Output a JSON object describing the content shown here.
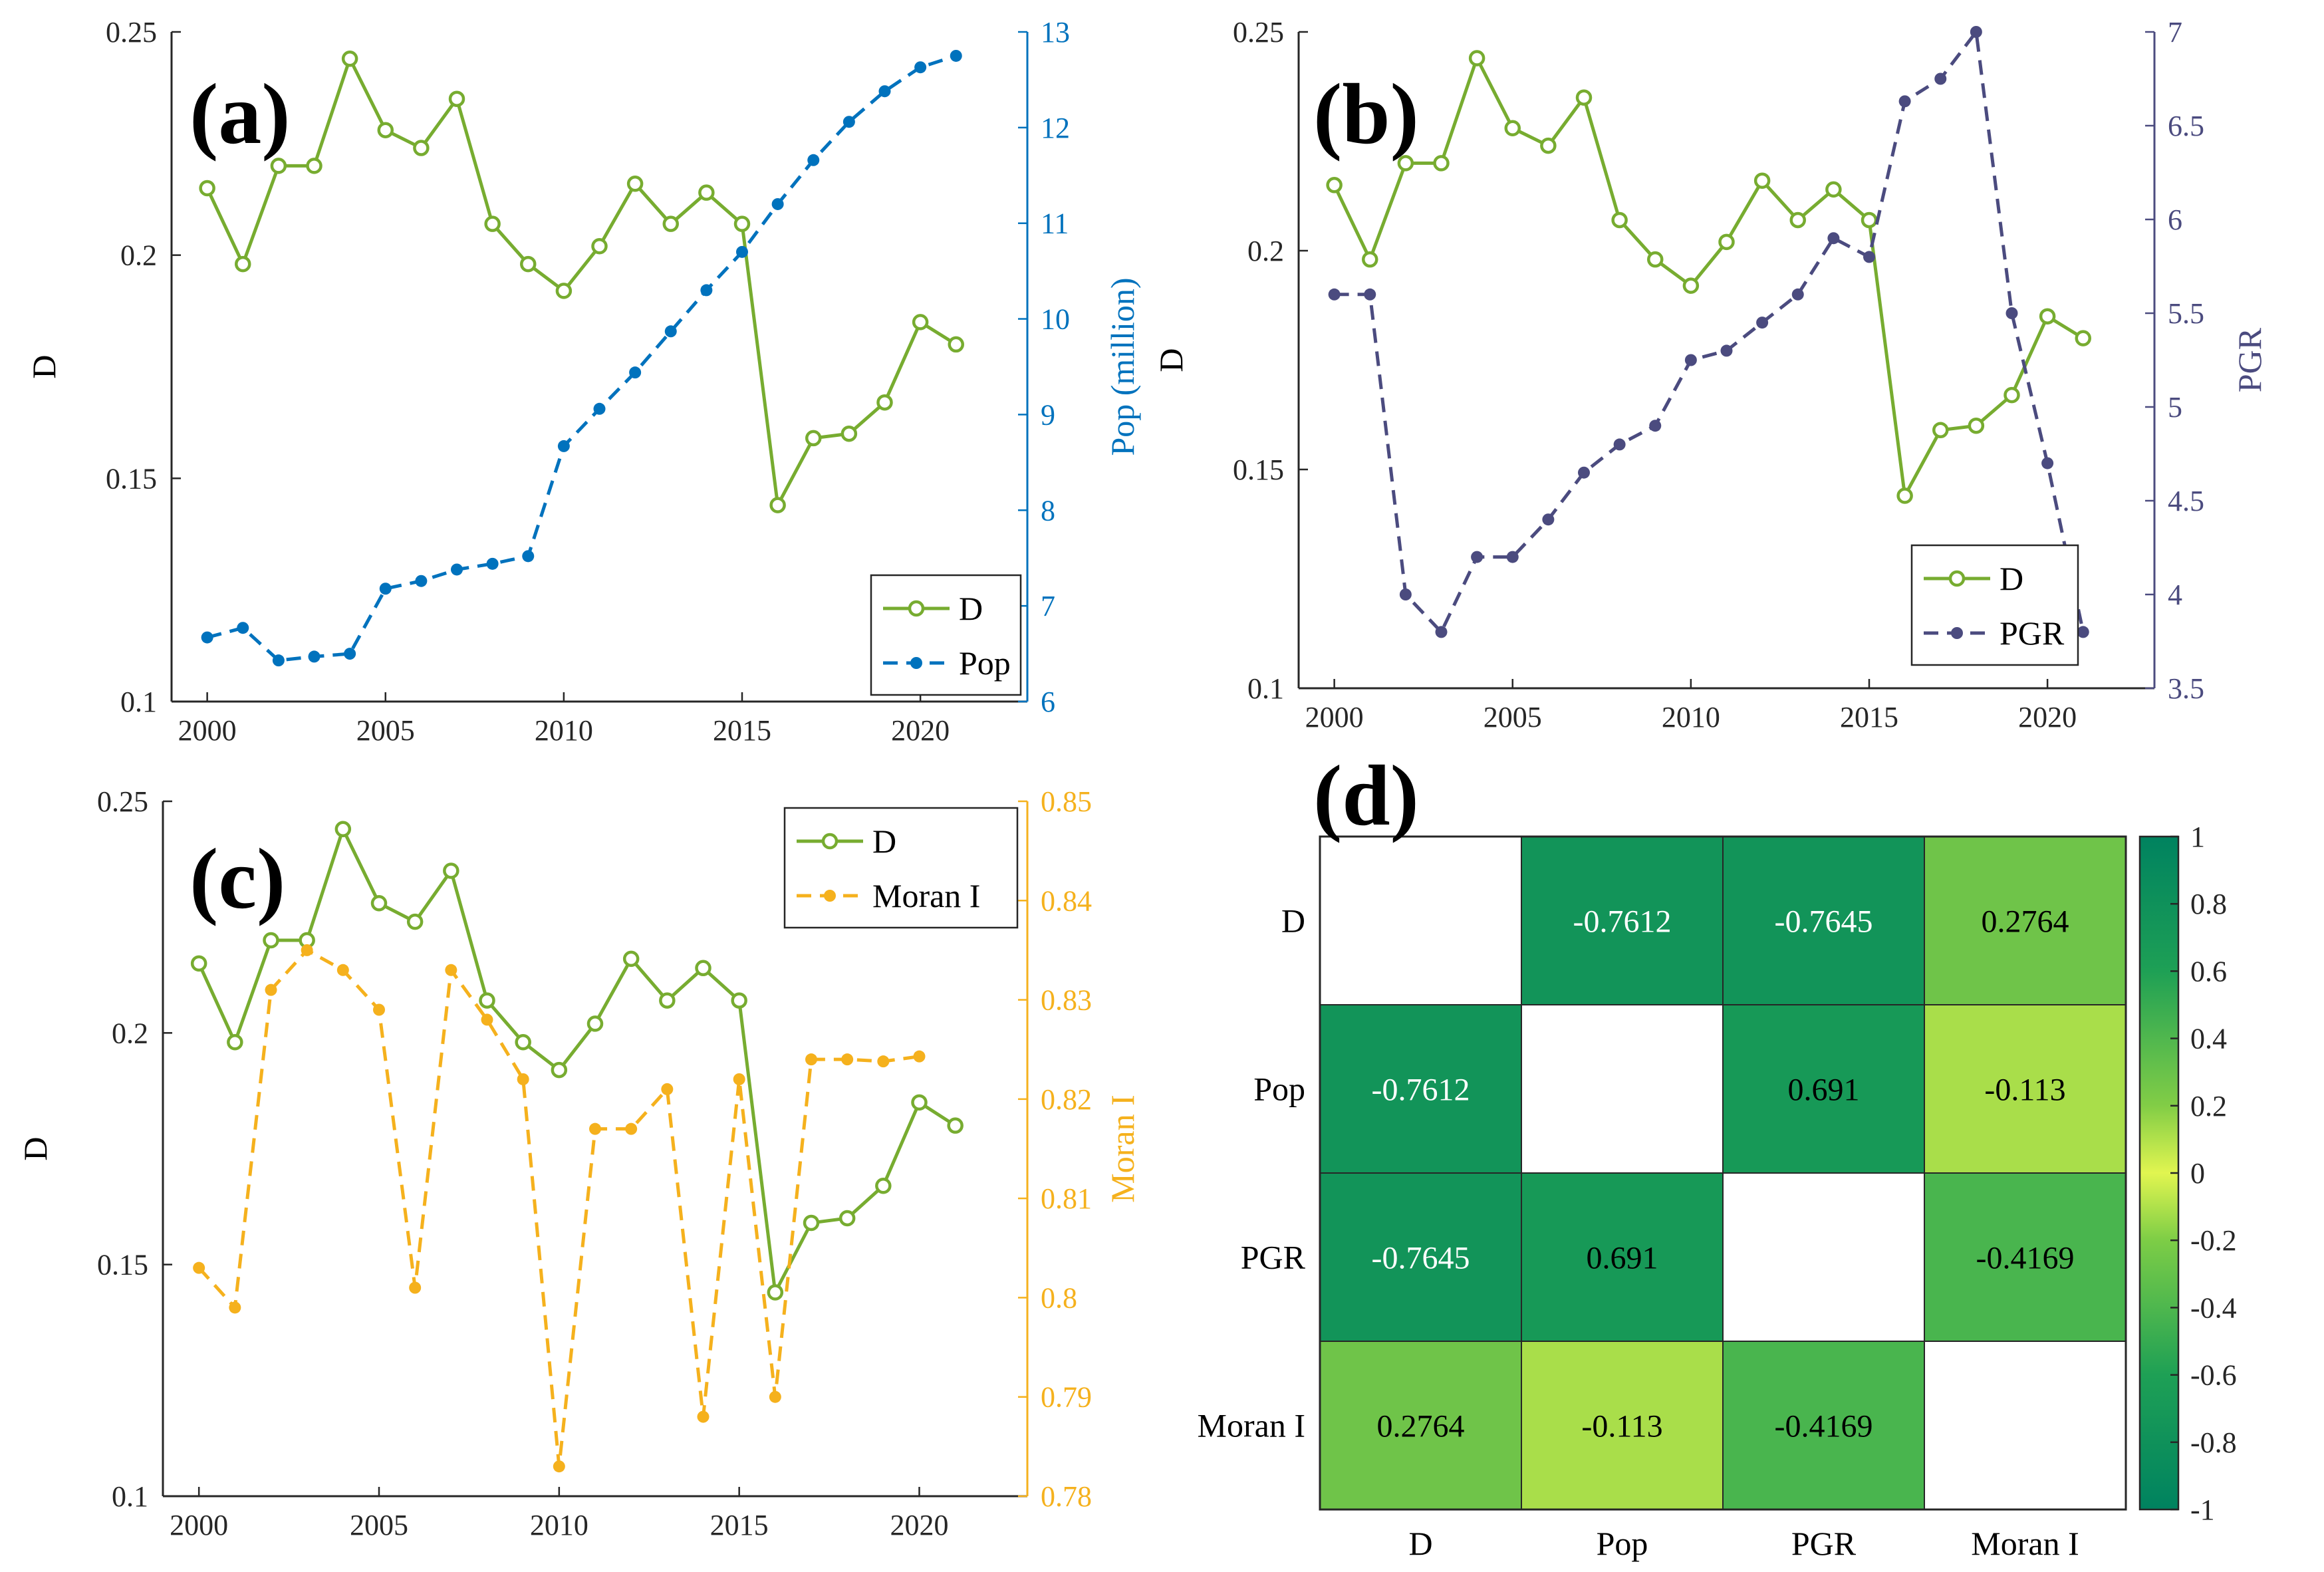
{
  "colors": {
    "D": "#77AC30",
    "Pop": "#0072BD",
    "PGR": "#4B4B7F",
    "Moran": "#F5B11D"
  },
  "chart_data": [
    {
      "panel": "(a)",
      "type": "line",
      "x": [
        2000,
        2001,
        2002,
        2003,
        2004,
        2005,
        2006,
        2007,
        2008,
        2009,
        2010,
        2011,
        2012,
        2013,
        2014,
        2015,
        2016,
        2017,
        2018,
        2019,
        2020,
        2021
      ],
      "xticks": [
        "2000",
        "2005",
        "2010",
        "2015",
        "2020"
      ],
      "xlim": [
        1999,
        2023
      ],
      "left_axis": {
        "label": "D",
        "lim": [
          0.1,
          0.25
        ],
        "ticks": [
          "0.1",
          "0.15",
          "0.2",
          "0.25"
        ]
      },
      "right_axis": {
        "label": "Pop (million)",
        "lim": [
          6,
          13
        ],
        "ticks": [
          "6",
          "7",
          "8",
          "9",
          "10",
          "11",
          "12",
          "13"
        ]
      },
      "series": [
        {
          "name": "D",
          "axis": "left",
          "style": "solid-circle",
          "values": [
            0.215,
            0.198,
            0.22,
            0.22,
            0.244,
            0.228,
            0.224,
            0.235,
            0.207,
            0.198,
            0.192,
            0.202,
            0.216,
            0.207,
            0.214,
            0.207,
            0.144,
            0.159,
            0.16,
            0.167,
            0.185,
            0.18
          ]
        },
        {
          "name": "Pop",
          "axis": "right",
          "style": "dashed-dot",
          "values": [
            6.67,
            6.77,
            6.43,
            6.47,
            6.5,
            7.18,
            7.26,
            7.38,
            7.44,
            7.52,
            8.67,
            9.06,
            9.44,
            9.87,
            10.3,
            10.7,
            11.2,
            11.66,
            12.06,
            12.38,
            12.63,
            12.75
          ]
        }
      ],
      "legend": {
        "position": "bottom-right",
        "items": [
          "D",
          "Pop"
        ]
      }
    },
    {
      "panel": "(b)",
      "type": "line",
      "x": [
        2000,
        2001,
        2002,
        2003,
        2004,
        2005,
        2006,
        2007,
        2008,
        2009,
        2010,
        2011,
        2012,
        2013,
        2014,
        2015,
        2016,
        2017,
        2018,
        2019,
        2020,
        2021
      ],
      "xticks": [
        "2000",
        "2005",
        "2010",
        "2015",
        "2020"
      ],
      "xlim": [
        1999,
        2023
      ],
      "left_axis": {
        "label": "D",
        "lim": [
          0.1,
          0.25
        ],
        "ticks": [
          "0.1",
          "0.15",
          "0.2",
          "0.25"
        ]
      },
      "right_axis": {
        "label": "PGR",
        "lim": [
          3.5,
          7
        ],
        "ticks": [
          "3.5",
          "4",
          "4.5",
          "5",
          "5.5",
          "6",
          "6.5",
          "7"
        ]
      },
      "series": [
        {
          "name": "D",
          "axis": "left",
          "style": "solid-circle",
          "values": [
            0.215,
            0.198,
            0.22,
            0.22,
            0.244,
            0.228,
            0.224,
            0.235,
            0.207,
            0.198,
            0.192,
            0.202,
            0.216,
            0.207,
            0.214,
            0.207,
            0.144,
            0.159,
            0.16,
            0.167,
            0.185,
            0.18
          ]
        },
        {
          "name": "PGR",
          "axis": "right",
          "style": "dashed-dot",
          "values": [
            5.6,
            5.6,
            4.0,
            3.8,
            4.2,
            4.2,
            4.4,
            4.65,
            4.8,
            4.9,
            5.25,
            5.3,
            5.45,
            5.6,
            5.9,
            5.8,
            6.63,
            6.75,
            7.0,
            5.5,
            4.7,
            3.8
          ]
        }
      ],
      "legend": {
        "position": "bottom-right",
        "items": [
          "D",
          "PGR"
        ]
      }
    },
    {
      "panel": "(c)",
      "type": "line",
      "x": [
        2000,
        2001,
        2002,
        2003,
        2004,
        2005,
        2006,
        2007,
        2008,
        2009,
        2010,
        2011,
        2012,
        2013,
        2014,
        2015,
        2016,
        2017,
        2018,
        2019,
        2020,
        2021
      ],
      "xticks": [
        "2000",
        "2005",
        "2010",
        "2015",
        "2020"
      ],
      "xlim": [
        1999,
        2023
      ],
      "left_axis": {
        "label": "D",
        "lim": [
          0.1,
          0.25
        ],
        "ticks": [
          "0.1",
          "0.15",
          "0.2",
          "0.25"
        ]
      },
      "right_axis": {
        "label": "Moran I",
        "lim": [
          0.78,
          0.85
        ],
        "ticks": [
          "0.78",
          "0.79",
          "0.8",
          "0.81",
          "0.82",
          "0.83",
          "0.84",
          "0.85"
        ]
      },
      "series": [
        {
          "name": "D",
          "axis": "left",
          "style": "solid-circle",
          "values": [
            0.215,
            0.198,
            0.22,
            0.22,
            0.244,
            0.228,
            0.224,
            0.235,
            0.207,
            0.198,
            0.192,
            0.202,
            0.216,
            0.207,
            0.214,
            0.207,
            0.144,
            0.159,
            0.16,
            0.167,
            0.185,
            0.18
          ]
        },
        {
          "name": "Moran I",
          "axis": "right",
          "style": "dashed-dot",
          "values": [
            0.803,
            0.799,
            0.831,
            0.835,
            0.833,
            0.829,
            0.801,
            0.833,
            0.828,
            0.822,
            0.783,
            0.817,
            0.817,
            0.821,
            0.788,
            0.822,
            0.79,
            0.824,
            0.824,
            0.8238,
            0.8243,
            null
          ]
        }
      ],
      "legend": {
        "position": "top-right",
        "items": [
          "D",
          "Moran I"
        ]
      }
    },
    {
      "panel": "(d)",
      "type": "heatmap",
      "labels": [
        "D",
        "Pop",
        "PGR",
        "Moran I"
      ],
      "matrix": [
        [
          null,
          -0.7612,
          -0.7645,
          0.2764
        ],
        [
          -0.7612,
          null,
          0.691,
          -0.113
        ],
        [
          -0.7645,
          0.691,
          null,
          -0.4169
        ],
        [
          0.2764,
          -0.113,
          -0.4169,
          null
        ]
      ],
      "cell_text": [
        [
          "",
          "-0.7612",
          "-0.7645",
          "0.2764"
        ],
        [
          "-0.7612",
          "",
          "0.691",
          "-0.113"
        ],
        [
          "-0.7645",
          "0.691",
          "",
          "-0.4169"
        ],
        [
          "0.2764",
          "-0.113",
          "-0.4169",
          ""
        ]
      ],
      "colorbar": {
        "lim": [
          -1,
          1
        ],
        "ticks": [
          "-1",
          "-0.8",
          "-0.6",
          "-0.4",
          "-0.2",
          "0",
          "0.2",
          "0.4",
          "0.6",
          "0.8",
          "1"
        ]
      }
    }
  ]
}
